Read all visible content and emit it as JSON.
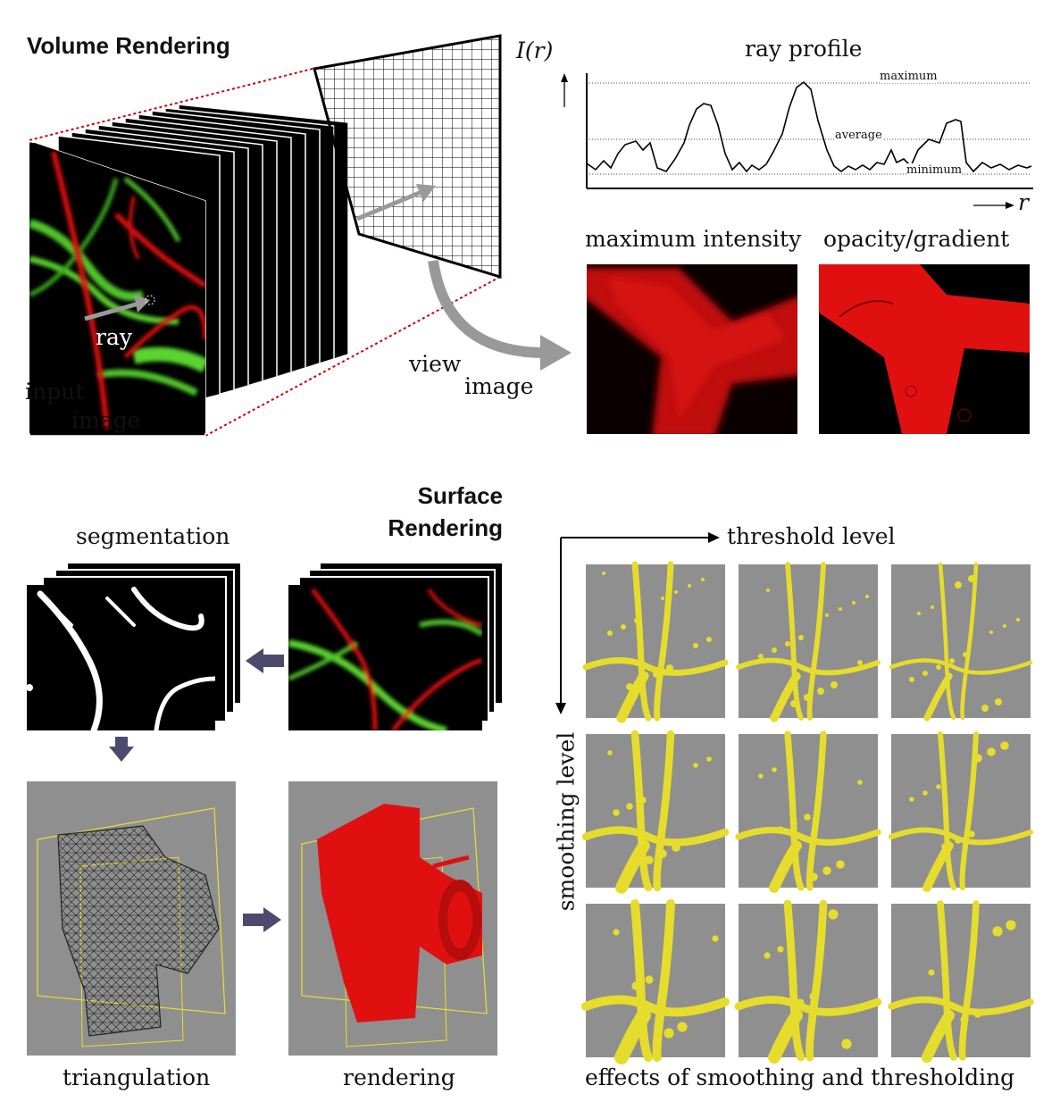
{
  "volume_rendering": {
    "heading": "Volume Rendering",
    "labels": {
      "ray": "ray",
      "input": "input",
      "image": "image",
      "view": "view",
      "view_image": "image"
    }
  },
  "ray_profile": {
    "title": "ray profile",
    "y_axis": "I(r)",
    "x_axis": "r",
    "lines": {
      "maximum": "maximum",
      "average": "average",
      "minimum": "minimum"
    }
  },
  "render_modes": {
    "left": "maximum intensity",
    "right": "opacity/gradient"
  },
  "surface_rendering": {
    "heading_line1": "Surface",
    "heading_line2": "Rendering",
    "segmentation": "segmentation",
    "triangulation": "triangulation",
    "rendering": "rendering"
  },
  "smoothing_grid": {
    "x_label": "threshold level",
    "y_label": "smoothing level",
    "caption": "effects of smoothing and thresholding",
    "rows": 3,
    "cols": 3
  },
  "colors": {
    "red": "#e01010",
    "green": "#5ed42a",
    "yellow": "#e6dc2c",
    "gray_bg": "#8f8f8f",
    "arrow": "#4d4a6e"
  }
}
